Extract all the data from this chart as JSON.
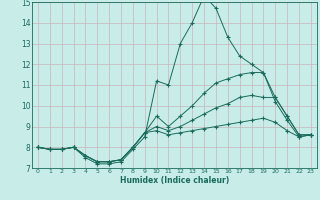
{
  "xlabel": "Humidex (Indice chaleur)",
  "bg_color": "#c8ede8",
  "grid_color": "#c8b4bc",
  "line_color": "#1a6b5a",
  "marker": "+",
  "xmin": 0,
  "xmax": 23,
  "ymin": 7,
  "ymax": 15,
  "series": [
    [
      8.0,
      7.9,
      7.9,
      8.0,
      7.5,
      7.2,
      7.2,
      7.3,
      7.9,
      8.5,
      11.2,
      11.0,
      13.0,
      14.0,
      15.3,
      14.7,
      13.3,
      12.4,
      12.0,
      11.6,
      10.4,
      9.5,
      8.6,
      8.6
    ],
    [
      8.0,
      7.9,
      7.9,
      8.0,
      7.6,
      7.3,
      7.3,
      7.4,
      8.0,
      8.7,
      9.5,
      9.0,
      9.5,
      10.0,
      10.6,
      11.1,
      11.3,
      11.5,
      11.6,
      11.6,
      10.2,
      9.3,
      8.5,
      8.6
    ],
    [
      8.0,
      7.9,
      7.9,
      8.0,
      7.6,
      7.3,
      7.3,
      7.4,
      8.0,
      8.7,
      9.0,
      8.8,
      9.0,
      9.3,
      9.6,
      9.9,
      10.1,
      10.4,
      10.5,
      10.4,
      10.4,
      9.5,
      8.6,
      8.6
    ],
    [
      8.0,
      7.9,
      7.9,
      8.0,
      7.6,
      7.3,
      7.3,
      7.4,
      8.0,
      8.7,
      8.8,
      8.6,
      8.7,
      8.8,
      8.9,
      9.0,
      9.1,
      9.2,
      9.3,
      9.4,
      9.2,
      8.8,
      8.5,
      8.6
    ]
  ]
}
